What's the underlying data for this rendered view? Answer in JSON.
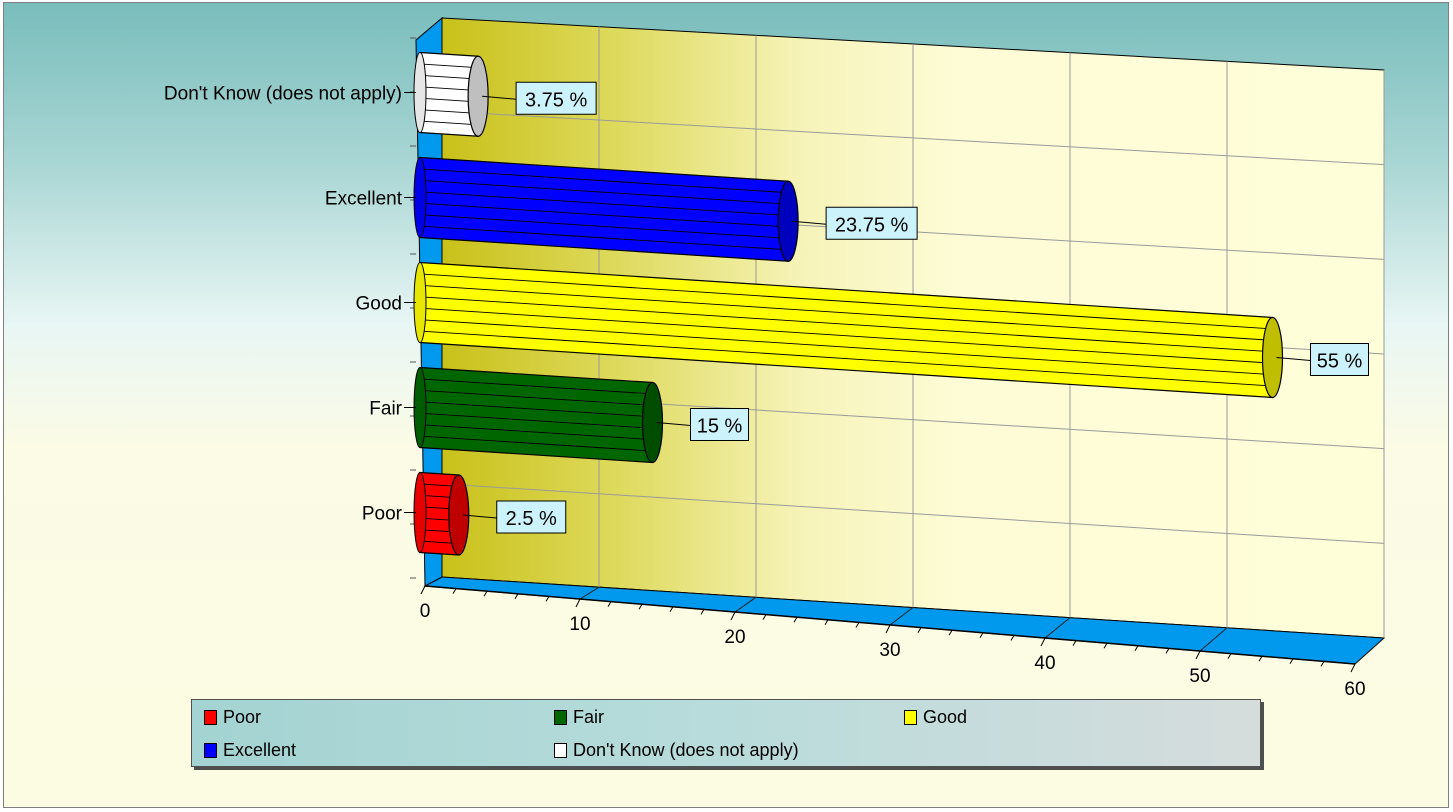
{
  "chart_data": {
    "type": "bar",
    "orientation": "horizontal",
    "style": "3d-cylinder",
    "categories": [
      "Poor",
      "Fair",
      "Good",
      "Excellent",
      "Don't Know  (does not apply)"
    ],
    "values": [
      2.5,
      15,
      55,
      23.75,
      3.75
    ],
    "data_labels": [
      "2.5 %",
      "15 %",
      "55 %",
      "23.75 %",
      "3.75 %"
    ],
    "colors": [
      "#ff0000",
      "#006600",
      "#ffff00",
      "#0000ff",
      "#ffffff"
    ],
    "x_ticks": [
      "0",
      "10",
      "20",
      "30",
      "40",
      "50",
      "60"
    ],
    "xlim": [
      0,
      60
    ],
    "grid": true,
    "legend_position": "bottom"
  },
  "legend": {
    "items": [
      {
        "label": "Poor",
        "color": "#ff0000"
      },
      {
        "label": "Fair",
        "color": "#006600"
      },
      {
        "label": "Good",
        "color": "#ffff00"
      },
      {
        "label": "Excellent",
        "color": "#0000ff"
      },
      {
        "label": "Don't Know  (does not apply)",
        "color": "#ffffff"
      }
    ]
  }
}
